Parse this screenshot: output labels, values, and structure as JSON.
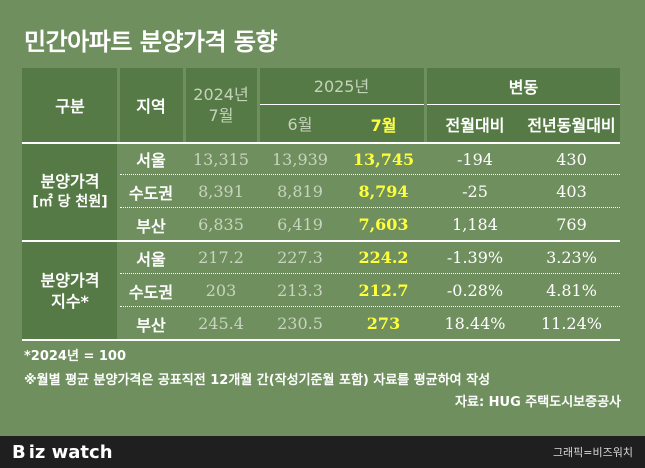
{
  "title": "민간아파트 분양가격 동향",
  "chart_data": {
    "type": "table",
    "headers": {
      "category": "구분",
      "region": "지역",
      "base_year": "2024년",
      "base_month": "7월",
      "year_2025": "2025년",
      "june": "6월",
      "july": "7월",
      "change": "변동",
      "mom": "전월대비",
      "yoy": "전년동월대비"
    },
    "groups": [
      {
        "label_line1": "분양가격",
        "label_line2": "[㎡ 당 천원]",
        "rows": [
          {
            "region": "서울",
            "y2024_jul": "13,315",
            "y2025_jun": "13,939",
            "y2025_jul": "13,745",
            "mom": "-194",
            "yoy": "430"
          },
          {
            "region": "수도권",
            "y2024_jul": "8,391",
            "y2025_jun": "8,819",
            "y2025_jul": "8,794",
            "mom": "-25",
            "yoy": "403"
          },
          {
            "region": "부산",
            "y2024_jul": "6,835",
            "y2025_jun": "6,419",
            "y2025_jul": "7,603",
            "mom": "1,184",
            "yoy": "769"
          }
        ]
      },
      {
        "label_line1": "분양가격",
        "label_line2": "지수*",
        "rows": [
          {
            "region": "서울",
            "y2024_jul": "217.2",
            "y2025_jun": "227.3",
            "y2025_jul": "224.2",
            "mom": "-1.39%",
            "yoy": "3.23%"
          },
          {
            "region": "수도권",
            "y2024_jul": "203",
            "y2025_jun": "213.3",
            "y2025_jul": "212.7",
            "mom": "-0.28%",
            "yoy": "4.81%"
          },
          {
            "region": "부산",
            "y2024_jul": "245.4",
            "y2025_jun": "230.5",
            "y2025_jul": "273",
            "mom": "18.44%",
            "yoy": "11.24%"
          }
        ]
      }
    ]
  },
  "notes": {
    "base": "*2024년 = 100",
    "method": "※월별 평균 분양가격은 공표직전 12개월 간(작성기준월 포함) 자료를 평균하여 작성",
    "source": "자료: HUG 주택도시보증공사"
  },
  "footer": {
    "logo_b": "B",
    "logo_rest": "iz watch",
    "credit": "그래픽=비즈워치"
  },
  "colors": {
    "background": "#6f8f5e",
    "band": "#567a45",
    "highlight": "#ffff3c",
    "footer": "#1f1f1f"
  }
}
